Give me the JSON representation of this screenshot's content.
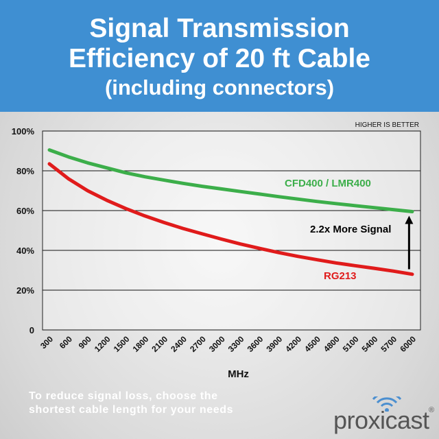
{
  "header": {
    "title_line1": "Signal Transmission",
    "title_line2": "Efficiency of 20 ft Cable",
    "subtitle": "(including connectors)"
  },
  "chart_data": {
    "type": "line",
    "x": [
      300,
      600,
      900,
      1200,
      1500,
      1800,
      2100,
      2400,
      2700,
      3000,
      3300,
      3600,
      3900,
      4200,
      4500,
      4800,
      5100,
      5400,
      5700,
      6000
    ],
    "x_tick_labels": [
      "300",
      "600",
      "900",
      "1200",
      "1500",
      "1800",
      "2100",
      "2400",
      "2700",
      "3000",
      "3300",
      "3600",
      "3900",
      "4200",
      "4500",
      "4800",
      "5100",
      "5400",
      "5700",
      "6000"
    ],
    "xlabel": "MHz",
    "ylabel": "",
    "ylim": [
      0,
      100
    ],
    "y_tick_labels": [
      "0",
      "20%",
      "40%",
      "60%",
      "80%",
      "100%"
    ],
    "y_ticks": [
      0,
      20,
      40,
      60,
      80,
      100
    ],
    "grid": true,
    "corner_note": "HIGHER IS BETTER",
    "series": [
      {
        "name": "CFD400 / LMR400",
        "color": "#3cae4a",
        "values": [
          90.5,
          87,
          84,
          81.5,
          79,
          77,
          75.3,
          73.7,
          72.2,
          70.9,
          69.6,
          68.3,
          67,
          65.8,
          64.6,
          63.5,
          62.5,
          61.5,
          60.5,
          59.5
        ]
      },
      {
        "name": "RG213",
        "color": "#e01b1b",
        "values": [
          83.5,
          76,
          70,
          65.2,
          61,
          57.3,
          54,
          51,
          48.3,
          45.7,
          43.2,
          41,
          38.9,
          37,
          35.3,
          33.7,
          32.3,
          31,
          29.6,
          28
        ]
      }
    ],
    "annotation": {
      "text": "2.2x More Signal",
      "arrow": "up",
      "at_x": 5950
    }
  },
  "footer": {
    "note_line1": "To reduce signal loss, choose the",
    "note_line2": "shortest cable length for your needs",
    "brand": "proxicast",
    "brand_mark": "®"
  },
  "colors": {
    "banner": "#3f8fd2",
    "grid": "#111111",
    "text": "#111111"
  }
}
